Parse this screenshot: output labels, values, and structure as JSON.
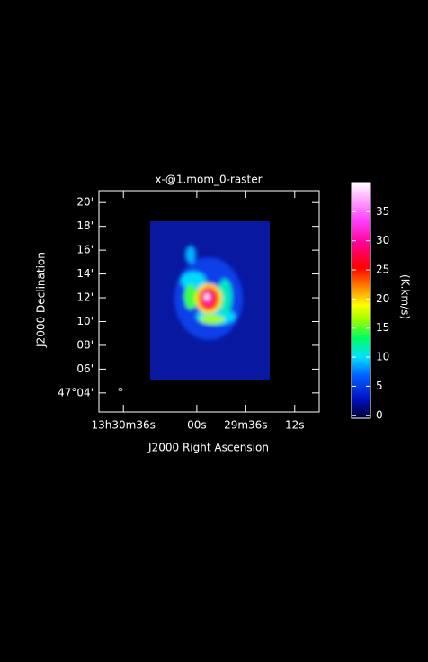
{
  "chart_data": {
    "type": "image",
    "title": "x-@1.mom_0-raster",
    "xlabel": "J2000 Right Ascension",
    "ylabel": "J2000 Declination",
    "xlim": [
      108,
      0
    ],
    "xticks": [
      {
        "value": 96,
        "label": "13h30m36s"
      },
      {
        "value": 60,
        "label": "00s"
      },
      {
        "value": 36,
        "label": "29m36s"
      },
      {
        "value": 12,
        "label": "12s"
      }
    ],
    "ylim": [
      2.4,
      21
    ],
    "yticks": [
      {
        "value": 20,
        "label": "20'"
      },
      {
        "value": 18,
        "label": "18'"
      },
      {
        "value": 16,
        "label": "16'"
      },
      {
        "value": 14,
        "label": "14'"
      },
      {
        "value": 12,
        "label": "12'"
      },
      {
        "value": 10,
        "label": "10'"
      },
      {
        "value": 8,
        "label": "08'"
      },
      {
        "value": 6,
        "label": "06'"
      },
      {
        "value": 4,
        "label": "47°04'"
      }
    ],
    "colorbar": {
      "label": "(K.km/s)",
      "lim": [
        -0.5,
        40
      ],
      "ticks": [
        0,
        5,
        10,
        15,
        20,
        25,
        30,
        35
      ]
    }
  }
}
